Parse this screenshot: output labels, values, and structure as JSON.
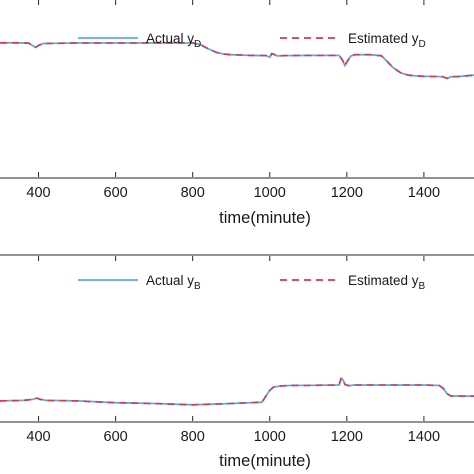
{
  "chart_data": [
    {
      "type": "line",
      "xlabel": "time(minute)",
      "ylabel": "",
      "xlim": [
        300,
        1530
      ],
      "ylim": [
        0,
        1
      ],
      "x_ticks": [
        400,
        600,
        800,
        1000,
        1200,
        1400
      ],
      "x_tick_labels": [
        "400",
        "600",
        "800",
        "1000",
        "1200",
        "1400"
      ],
      "grid": false,
      "legend_position": "top-right",
      "series": [
        {
          "name": "Actual",
          "name_subscript": "D",
          "color": "#5aaee6",
          "style": "solid",
          "x": [
            300,
            340,
            375,
            385,
            392,
            400,
            412,
            430,
            500,
            600,
            700,
            780,
            800,
            820,
            840,
            860,
            880,
            900,
            950,
            990,
            1000,
            1005,
            1010,
            1020,
            1040,
            1100,
            1180,
            1190,
            1195,
            1200,
            1210,
            1220,
            1260,
            1290,
            1300,
            1320,
            1340,
            1360,
            1380,
            1400,
            1430,
            1440,
            1450,
            1460,
            1470,
            1490,
            1510,
            1530
          ],
          "y": [
            0.758,
            0.758,
            0.756,
            0.742,
            0.733,
            0.743,
            0.754,
            0.755,
            0.757,
            0.757,
            0.757,
            0.757,
            0.757,
            0.748,
            0.725,
            0.705,
            0.695,
            0.691,
            0.687,
            0.686,
            0.676,
            0.697,
            0.694,
            0.684,
            0.686,
            0.687,
            0.687,
            0.656,
            0.628,
            0.649,
            0.683,
            0.691,
            0.691,
            0.685,
            0.663,
            0.618,
            0.588,
            0.575,
            0.571,
            0.569,
            0.568,
            0.567,
            0.566,
            0.557,
            0.566,
            0.568,
            0.572,
            0.575
          ]
        },
        {
          "name": "Estimated",
          "name_subscript": "D",
          "color": "#d9364f",
          "style": "dashed",
          "x": [
            300,
            340,
            375,
            385,
            392,
            400,
            412,
            430,
            500,
            600,
            700,
            780,
            800,
            820,
            840,
            860,
            880,
            900,
            950,
            990,
            1000,
            1005,
            1010,
            1020,
            1040,
            1100,
            1180,
            1190,
            1195,
            1200,
            1210,
            1220,
            1260,
            1290,
            1300,
            1320,
            1340,
            1360,
            1380,
            1400,
            1430,
            1440,
            1450,
            1460,
            1470,
            1490,
            1510,
            1530
          ],
          "y": [
            0.758,
            0.758,
            0.756,
            0.742,
            0.733,
            0.743,
            0.754,
            0.755,
            0.757,
            0.757,
            0.757,
            0.757,
            0.757,
            0.748,
            0.725,
            0.705,
            0.695,
            0.691,
            0.687,
            0.686,
            0.676,
            0.697,
            0.694,
            0.684,
            0.686,
            0.687,
            0.687,
            0.656,
            0.628,
            0.649,
            0.683,
            0.691,
            0.691,
            0.685,
            0.663,
            0.618,
            0.588,
            0.575,
            0.571,
            0.569,
            0.568,
            0.567,
            0.566,
            0.557,
            0.566,
            0.568,
            0.572,
            0.575
          ]
        }
      ]
    },
    {
      "type": "line",
      "xlabel": "time(minute)",
      "ylabel": "",
      "xlim": [
        300,
        1530
      ],
      "ylim": [
        0,
        1
      ],
      "x_ticks": [
        400,
        600,
        800,
        1000,
        1200,
        1400
      ],
      "x_tick_labels": [
        "400",
        "600",
        "800",
        "1000",
        "1200",
        "1400"
      ],
      "grid": false,
      "legend_position": "top-right",
      "series": [
        {
          "name": "Actual",
          "name_subscript": "B",
          "color": "#5aaee6",
          "style": "solid",
          "x": [
            300,
            360,
            385,
            395,
            405,
            420,
            500,
            600,
            700,
            800,
            900,
            980,
            990,
            1000,
            1010,
            1030,
            1060,
            1100,
            1180,
            1185,
            1190,
            1195,
            1205,
            1220,
            1300,
            1400,
            1440,
            1450,
            1460,
            1470,
            1480,
            1500,
            1530
          ],
          "y": [
            0.122,
            0.125,
            0.131,
            0.139,
            0.131,
            0.125,
            0.122,
            0.111,
            0.106,
            0.098,
            0.106,
            0.114,
            0.151,
            0.186,
            0.206,
            0.213,
            0.216,
            0.216,
            0.218,
            0.259,
            0.249,
            0.222,
            0.214,
            0.218,
            0.218,
            0.218,
            0.215,
            0.198,
            0.166,
            0.151,
            0.152,
            0.151,
            0.151
          ]
        },
        {
          "name": "Estimated",
          "name_subscript": "B",
          "color": "#d9364f",
          "style": "dashed",
          "x": [
            300,
            360,
            385,
            395,
            405,
            420,
            500,
            600,
            700,
            800,
            900,
            980,
            990,
            1000,
            1010,
            1030,
            1060,
            1100,
            1180,
            1185,
            1190,
            1195,
            1205,
            1220,
            1300,
            1400,
            1440,
            1450,
            1460,
            1470,
            1480,
            1500,
            1530
          ],
          "y": [
            0.122,
            0.125,
            0.131,
            0.139,
            0.131,
            0.125,
            0.122,
            0.111,
            0.106,
            0.098,
            0.106,
            0.114,
            0.151,
            0.186,
            0.206,
            0.213,
            0.216,
            0.216,
            0.218,
            0.259,
            0.249,
            0.222,
            0.214,
            0.218,
            0.218,
            0.218,
            0.215,
            0.198,
            0.166,
            0.151,
            0.152,
            0.151,
            0.151
          ]
        }
      ]
    }
  ]
}
